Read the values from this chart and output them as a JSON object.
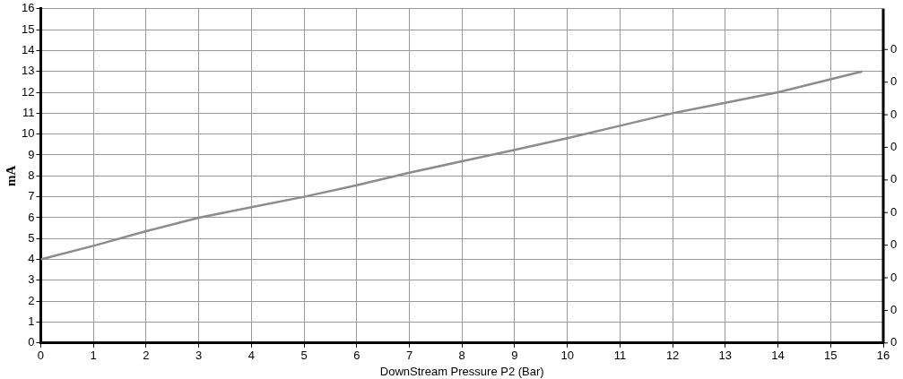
{
  "chart_data": {
    "type": "line",
    "xlabel": "DownStream Pressure P2 (Bar)",
    "ylabel": "mA",
    "x": [
      0,
      1,
      2,
      3,
      4,
      5,
      6,
      7,
      8,
      9,
      10,
      11,
      12,
      13,
      14,
      15.6
    ],
    "series": [
      {
        "color": "#8c8c8c",
        "values": [
          4,
          4.65,
          5.35,
          6,
          6.5,
          7,
          7.55,
          8.15,
          8.7,
          9.25,
          9.8,
          10.4,
          11,
          11.5,
          12,
          13
        ]
      }
    ],
    "xlim": [
      0,
      16
    ],
    "xticks": [
      0,
      1,
      2,
      3,
      4,
      5,
      6,
      7,
      8,
      9,
      10,
      11,
      12,
      13,
      14,
      15,
      16
    ],
    "ylim": [
      0,
      16
    ],
    "yticks": [
      0,
      1,
      2,
      3,
      4,
      5,
      6,
      7,
      8,
      9,
      10,
      11,
      12,
      13,
      14,
      15,
      16
    ],
    "annotations": [
      "0",
      "0",
      "0",
      "0",
      "0",
      "0",
      "0",
      "0",
      "0",
      "0"
    ],
    "grid": true,
    "legend": false,
    "marker": "none",
    "line_style": "solid"
  }
}
